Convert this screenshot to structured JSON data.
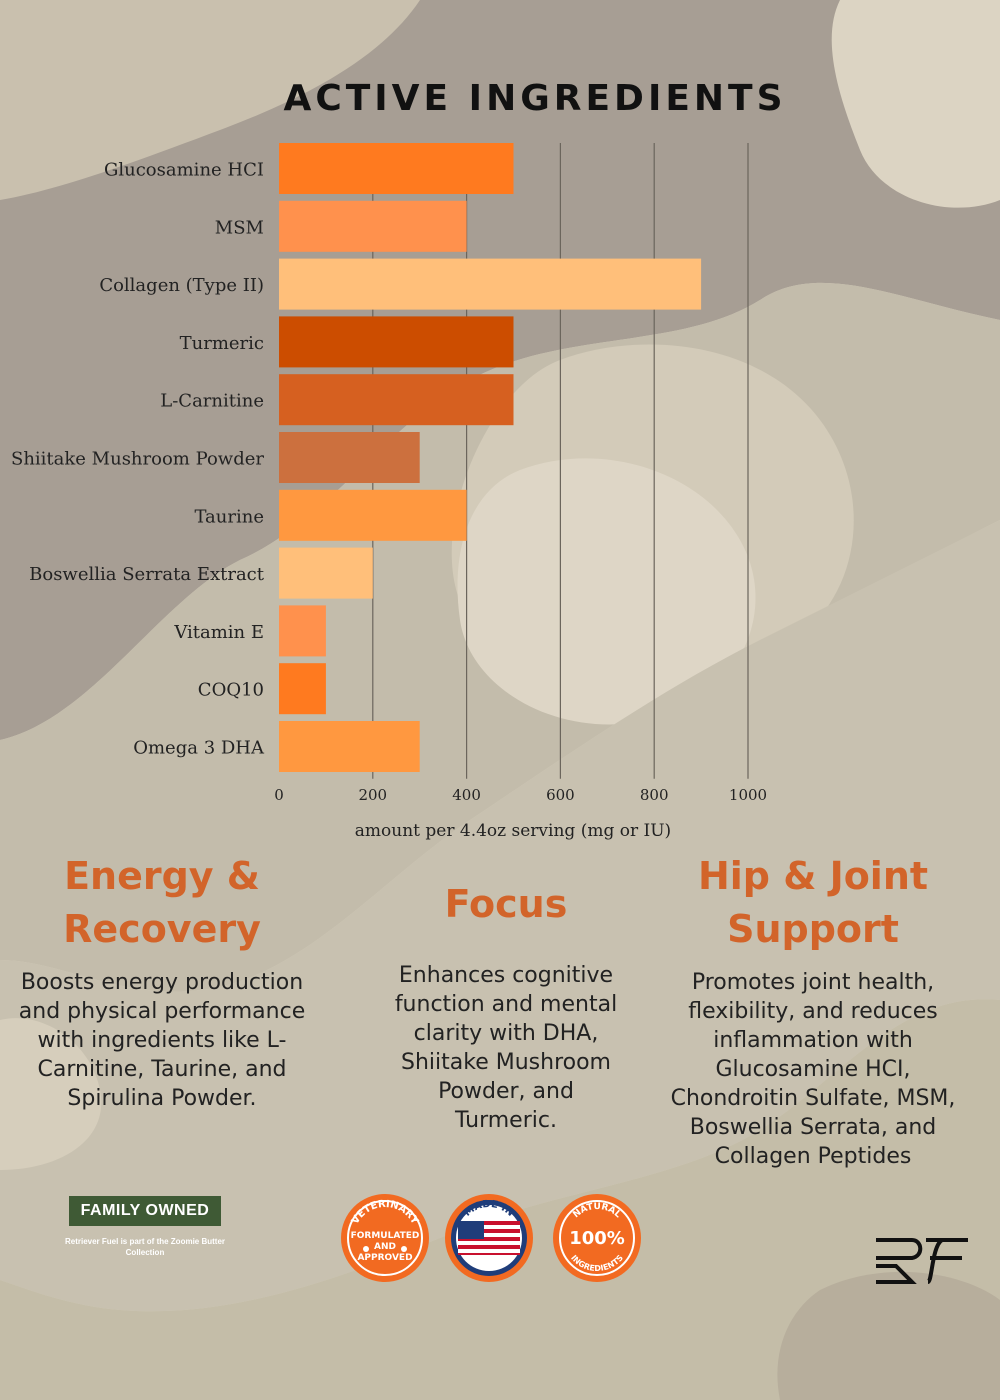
{
  "chart_data": {
    "type": "bar",
    "orientation": "horizontal",
    "title": "ACTIVE INGREDIENTS",
    "xlabel": "amount per 4.4oz serving (mg or IU)",
    "ylabel": "",
    "xlim": [
      0,
      1000
    ],
    "xticks": [
      0,
      200,
      400,
      600,
      800,
      1000
    ],
    "grid": true,
    "categories": [
      "Glucosamine HCI",
      "MSM",
      "Collagen (Type II)",
      "Turmeric",
      "L-Carnitine",
      "Shiitake Mushroom Powder",
      "Taurine",
      "Boswellia Serrata Extract",
      "Vitamin E",
      "COQ10",
      "Omega 3 DHA"
    ],
    "values": [
      500,
      400,
      900,
      500,
      500,
      300,
      400,
      200,
      100,
      100,
      300
    ],
    "colors": [
      "#ff7a1f",
      "#ff914d",
      "#ffbf7a",
      "#cc4d00",
      "#d66020",
      "#cc703e",
      "#ff9840",
      "#ffbf7a",
      "#ff914d",
      "#ff7a1f",
      "#ff9840"
    ]
  },
  "benefits": [
    {
      "title": "Energy & Recovery",
      "text": "Boosts energy production and physical performance with ingredients like L-Carnitine, Taurine, and Spirulina Powder."
    },
    {
      "title": "Focus",
      "text": "Enhances cognitive function and mental clarity with DHA, Shiitake Mushroom Powder, and Turmeric."
    },
    {
      "title": "Hip & Joint Support",
      "text": "Promotes joint health, flexibility, and reduces inflammation with Glucosamine HCI, Chondroitin Sulfate, MSM, Boswellia Serrata, and Collagen Peptides"
    }
  ],
  "footer": {
    "family_label": "FAMILY OWNED",
    "family_note": "Retriever Fuel is part of the Zoomie Butter Collection",
    "badges": {
      "vet_top": "VETERINARY",
      "vet_mid1": "FORMULATED",
      "vet_mid2": "AND",
      "vet_mid3": "APPROVED",
      "usa_top": "MADE IN",
      "usa_bottom": "USA",
      "natural_top": "NATURAL",
      "natural_mid": "100%",
      "natural_bottom": "INGREDIENTS"
    },
    "brand_logo": "RF"
  },
  "colors": {
    "accent": "#d2642a",
    "background": "#d9d2c2"
  }
}
